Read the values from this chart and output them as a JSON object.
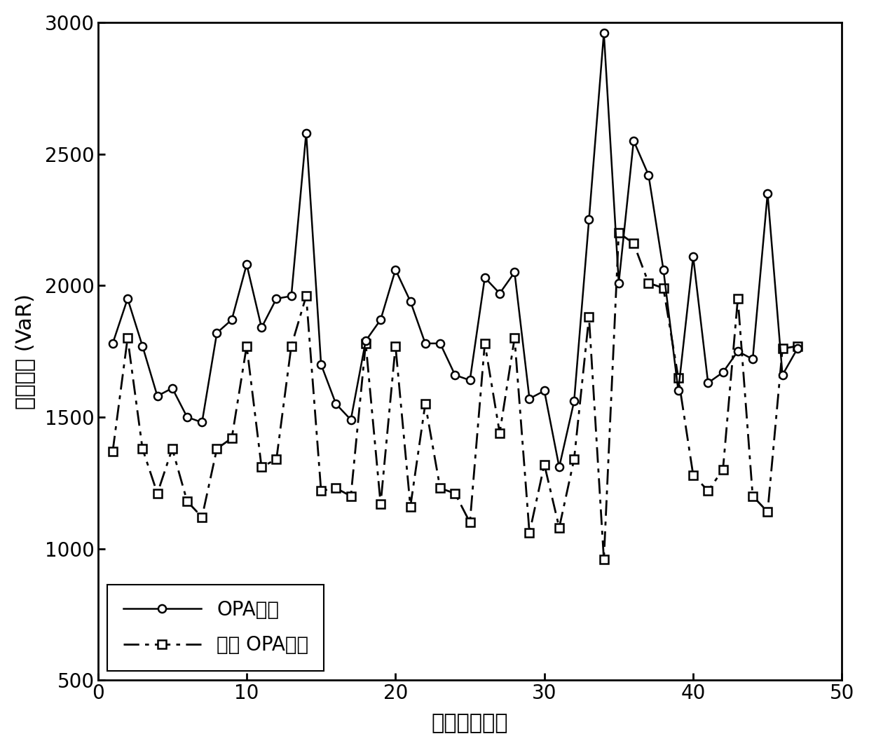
{
  "opa_x": [
    1,
    2,
    3,
    4,
    5,
    6,
    7,
    8,
    9,
    10,
    11,
    12,
    13,
    14,
    15,
    16,
    17,
    18,
    19,
    20,
    21,
    22,
    23,
    24,
    25,
    26,
    27,
    28,
    29,
    30,
    31,
    32,
    33,
    34,
    35,
    36,
    37,
    38,
    39,
    40,
    41,
    42,
    43,
    44,
    45,
    46,
    47
  ],
  "opa_y": [
    1780,
    1950,
    1770,
    1580,
    1610,
    1500,
    1480,
    1820,
    1870,
    2080,
    1840,
    1950,
    1960,
    2580,
    1700,
    1550,
    1490,
    1790,
    1870,
    2060,
    1940,
    1780,
    1780,
    1660,
    1640,
    2030,
    1970,
    2050,
    1570,
    1600,
    1310,
    1560,
    2250,
    2960,
    2010,
    2550,
    2420,
    2060,
    1600,
    2110,
    1630,
    1670,
    1750,
    1720,
    2350,
    1660,
    1760
  ],
  "improved_x": [
    1,
    2,
    3,
    4,
    5,
    6,
    7,
    8,
    9,
    10,
    11,
    12,
    13,
    14,
    15,
    16,
    17,
    18,
    19,
    20,
    21,
    22,
    23,
    24,
    25,
    26,
    27,
    28,
    29,
    30,
    31,
    32,
    33,
    34,
    35,
    36,
    37,
    38,
    39,
    40,
    41,
    42,
    43,
    44,
    45,
    46,
    47
  ],
  "improved_y": [
    1370,
    1800,
    1380,
    1210,
    1380,
    1180,
    1120,
    1380,
    1420,
    1770,
    1310,
    1340,
    1770,
    1960,
    1220,
    1230,
    1200,
    1780,
    1170,
    1770,
    1160,
    1550,
    1230,
    1210,
    1100,
    1780,
    1440,
    1800,
    1060,
    1320,
    1080,
    1340,
    1880,
    960,
    2200,
    2160,
    2010,
    1990,
    1650,
    1280,
    1220,
    1300,
    1950,
    1200,
    1140,
    1760,
    1770
  ],
  "xlabel": "输电线路编号",
  "ylabel_chinese": "停电风险",
  "ylabel_var": "(VaR)",
  "xlim": [
    0,
    50
  ],
  "ylim": [
    500,
    3000
  ],
  "xticks": [
    0,
    10,
    20,
    30,
    40,
    50
  ],
  "yticks": [
    500,
    1000,
    1500,
    2000,
    2500,
    3000
  ],
  "legend_opa": "OPA模型",
  "legend_improved": "改进 OPA模型",
  "line_color": "#000000",
  "bg_color": "#ffffff",
  "xlabel_fontsize": 22,
  "ylabel_fontsize": 22,
  "tick_fontsize": 20,
  "legend_fontsize": 20
}
